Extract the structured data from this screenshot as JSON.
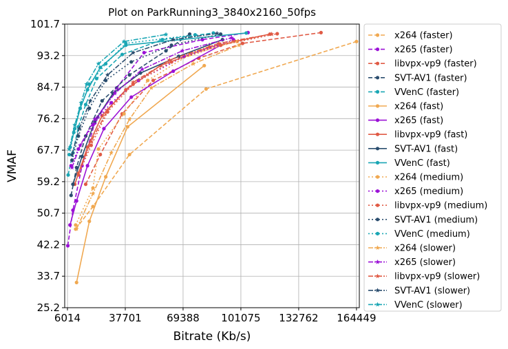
{
  "chart_data": {
    "type": "line",
    "title": "Plot on ParkRunning3_3840x2160_50fps",
    "xlabel": "Bitrate (Kb/s)",
    "ylabel": "VMAF",
    "xlim": [
      4500,
      166000
    ],
    "ylim": [
      25.2,
      101.7
    ],
    "x_ticks": [
      6014,
      37701,
      69388,
      101075,
      132762,
      164449
    ],
    "y_ticks": [
      25.2,
      33.7,
      42.2,
      50.7,
      59.2,
      67.7,
      76.2,
      84.7,
      93.2,
      101.7
    ],
    "grid": true,
    "legend_position": "right-outside",
    "series": [
      {
        "name": "x264 (faster)",
        "color": "#f0a850",
        "dash": "6,3",
        "marker": "circle",
        "points": [
          [
            10500,
            46.4
          ],
          [
            20000,
            52.5
          ],
          [
            40000,
            66.5
          ],
          [
            82000,
            84.2
          ],
          [
            164449,
            97.0
          ]
        ]
      },
      {
        "name": "x265 (faster)",
        "color": "#9b11d6",
        "dash": "6,3",
        "marker": "circle",
        "points": [
          [
            6200,
            41.9
          ],
          [
            9000,
            51.5
          ],
          [
            14000,
            63.5
          ],
          [
            21000,
            75.0
          ],
          [
            33000,
            84.5
          ],
          [
            48000,
            94.0
          ],
          [
            80000,
            97.5
          ],
          [
            105000,
            99.4
          ]
        ]
      },
      {
        "name": "libvpx-vp9 (faster)",
        "color": "#e05a45",
        "dash": "6,3",
        "marker": "circle",
        "points": [
          [
            16000,
            58.5
          ],
          [
            24000,
            66.5
          ],
          [
            36000,
            77.5
          ],
          [
            53000,
            86.5
          ],
          [
            78000,
            92.5
          ],
          [
            102000,
            96.5
          ],
          [
            145000,
            99.4
          ]
        ]
      },
      {
        "name": "SVT-AV1 (faster)",
        "color": "#2a4d6e",
        "dash": "6,3",
        "marker": "circle",
        "points": [
          [
            8000,
            55.5
          ],
          [
            11000,
            63.0
          ],
          [
            16000,
            71.5
          ],
          [
            25000,
            81.0
          ],
          [
            40000,
            88.0
          ],
          [
            60000,
            94.5
          ],
          [
            73000,
            99.0
          ]
        ]
      },
      {
        "name": "VVenC (faster)",
        "color": "#1aa6b4",
        "dash": "6,3",
        "marker": "circle",
        "points": [
          [
            6400,
            61.0
          ],
          [
            9000,
            67.0
          ],
          [
            12000,
            74.0
          ],
          [
            16000,
            80.0
          ],
          [
            22000,
            87.0
          ],
          [
            36000,
            93.5
          ],
          [
            58000,
            97.5
          ],
          [
            86000,
            99.3
          ]
        ]
      },
      {
        "name": "x264 (fast)",
        "color": "#f0a850",
        "dash": "",
        "marker": "circle",
        "points": [
          [
            11000,
            32.0
          ],
          [
            18000,
            48.5
          ],
          [
            27000,
            60.5
          ],
          [
            39000,
            74.0
          ],
          [
            81000,
            90.5
          ]
        ]
      },
      {
        "name": "x265 (fast)",
        "color": "#9b11d6",
        "dash": "",
        "marker": "circle",
        "points": [
          [
            7400,
            47.5
          ],
          [
            11000,
            54.0
          ],
          [
            17000,
            63.5
          ],
          [
            26000,
            73.5
          ],
          [
            41000,
            82.0
          ],
          [
            64000,
            89.0
          ],
          [
            90000,
            96.0
          ]
        ]
      },
      {
        "name": "libvpx-vp9 (fast)",
        "color": "#e05a45",
        "dash": "",
        "marker": "circle",
        "points": [
          [
            10000,
            58.5
          ],
          [
            17000,
            68.5
          ],
          [
            25000,
            77.0
          ],
          [
            38000,
            84.0
          ],
          [
            57000,
            90.5
          ],
          [
            84000,
            95.5
          ],
          [
            117000,
            99.0
          ]
        ]
      },
      {
        "name": "SVT-AV1 (fast)",
        "color": "#2a4d6e",
        "dash": "",
        "marker": "circle",
        "points": [
          [
            9000,
            58.5
          ],
          [
            14000,
            66.0
          ],
          [
            21000,
            75.5
          ],
          [
            31000,
            83.0
          ],
          [
            46000,
            88.5
          ],
          [
            67000,
            93.0
          ],
          [
            91000,
            97.5
          ]
        ]
      },
      {
        "name": "VVenC (fast)",
        "color": "#1aa6b4",
        "dash": "",
        "marker": "circle",
        "points": [
          [
            7500,
            68.5
          ],
          [
            10000,
            73.5
          ],
          [
            13000,
            79.0
          ],
          [
            17000,
            84.0
          ],
          [
            24000,
            90.0
          ],
          [
            38000,
            96.0
          ],
          [
            104000,
            99.3
          ]
        ]
      },
      {
        "name": "x264 (medium)",
        "color": "#f0a850",
        "dash": "2,3",
        "marker": "circle",
        "points": [
          [
            10500,
            47.5
          ],
          [
            20000,
            57.5
          ],
          [
            23000,
            68.0
          ],
          [
            37000,
            77.5
          ],
          [
            50000,
            86.5
          ],
          [
            73000,
            93.5
          ],
          [
            99000,
            97.0
          ]
        ]
      },
      {
        "name": "x265 (medium)",
        "color": "#9b11d6",
        "dash": "2,3",
        "marker": "circle",
        "points": [
          [
            8000,
            63.5
          ],
          [
            12000,
            68.0
          ],
          [
            20000,
            74.5
          ],
          [
            30000,
            80.5
          ],
          [
            45000,
            86.5
          ],
          [
            70000,
            93.0
          ],
          [
            97000,
            97.5
          ]
        ]
      },
      {
        "name": "libvpx-vp9 (medium)",
        "color": "#e05a45",
        "dash": "2,3",
        "marker": "circle",
        "points": [
          [
            12000,
            61.0
          ],
          [
            19000,
            69.0
          ],
          [
            28000,
            78.0
          ],
          [
            42000,
            85.5
          ],
          [
            63000,
            91.5
          ],
          [
            90000,
            96.0
          ],
          [
            121000,
            99.1
          ]
        ]
      },
      {
        "name": "SVT-AV1 (medium)",
        "color": "#2a4d6e",
        "dash": "2,3",
        "marker": "circle",
        "points": [
          [
            8500,
            65.0
          ],
          [
            12000,
            71.5
          ],
          [
            18000,
            79.0
          ],
          [
            27000,
            86.5
          ],
          [
            41000,
            91.5
          ],
          [
            63000,
            96.0
          ],
          [
            90000,
            99.0
          ]
        ]
      },
      {
        "name": "VVenC (medium)",
        "color": "#1aa6b4",
        "dash": "2,3",
        "marker": "circle",
        "points": [
          [
            7000,
            66.5
          ],
          [
            9500,
            72.5
          ],
          [
            13000,
            79.0
          ],
          [
            18000,
            85.5
          ],
          [
            27000,
            91.0
          ],
          [
            38000,
            96.5
          ],
          [
            76000,
            98.8
          ]
        ]
      },
      {
        "name": "x264 (slower)",
        "color": "#f0a850",
        "dash": "7,2,2,2",
        "marker": "star",
        "points": [
          [
            11000,
            46.5
          ],
          [
            20000,
            56.0
          ],
          [
            30000,
            67.0
          ],
          [
            40000,
            76.0
          ],
          [
            52000,
            84.5
          ],
          [
            75000,
            91.0
          ],
          [
            100000,
            96.0
          ]
        ]
      },
      {
        "name": "x265 (slower)",
        "color": "#9b11d6",
        "dash": "7,2,2,2",
        "marker": "star",
        "points": [
          [
            8500,
            63.0
          ],
          [
            13000,
            69.0
          ],
          [
            21000,
            76.0
          ],
          [
            32000,
            83.0
          ],
          [
            47000,
            89.5
          ],
          [
            69000,
            94.5
          ],
          [
            96000,
            98.0
          ]
        ]
      },
      {
        "name": "libvpx-vp9 (slower)",
        "color": "#e05a45",
        "dash": "7,2,2,2",
        "marker": "star",
        "points": [
          [
            12000,
            61.5
          ],
          [
            19000,
            70.0
          ],
          [
            28000,
            78.5
          ],
          [
            42000,
            86.0
          ],
          [
            62000,
            92.0
          ],
          [
            89000,
            96.5
          ],
          [
            118000,
            99.0
          ]
        ]
      },
      {
        "name": "SVT-AV1 (slower)",
        "color": "#2a4d6e",
        "dash": "7,2,2,2",
        "marker": "star",
        "points": [
          [
            8500,
            66.5
          ],
          [
            12500,
            73.5
          ],
          [
            18500,
            81.0
          ],
          [
            28000,
            88.0
          ],
          [
            42000,
            94.0
          ],
          [
            64000,
            97.5
          ],
          [
            88000,
            99.2
          ]
        ]
      },
      {
        "name": "VVenC (slower)",
        "color": "#1aa6b4",
        "dash": "7,2,2,2",
        "marker": "star",
        "points": [
          [
            7000,
            68.0
          ],
          [
            10000,
            74.5
          ],
          [
            13500,
            80.5
          ],
          [
            16500,
            85.5
          ],
          [
            23000,
            91.0
          ],
          [
            37000,
            97.0
          ],
          [
            60000,
            98.9
          ]
        ]
      }
    ]
  }
}
